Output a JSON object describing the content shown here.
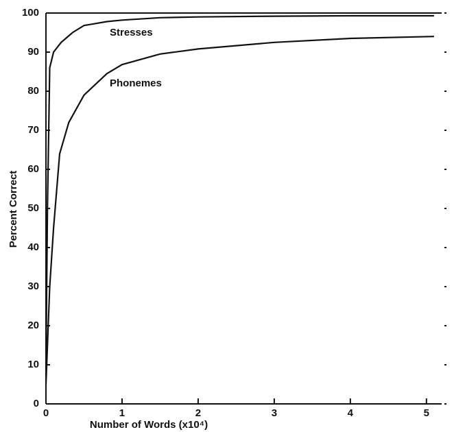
{
  "chart_data": {
    "type": "line",
    "x_label": "Number of Words (x10⁴)",
    "y_label": "Percent Correct",
    "xlim": [
      0,
      5.2
    ],
    "ylim": [
      0,
      100
    ],
    "xticks": [
      0,
      1,
      2,
      3,
      4,
      5
    ],
    "yticks": [
      0,
      10,
      20,
      30,
      40,
      50,
      60,
      70,
      80,
      90,
      100
    ],
    "series": [
      {
        "name": "Stresses",
        "color": "#111111",
        "x": [
          0,
          0.02,
          0.05,
          0.1,
          0.2,
          0.35,
          0.5,
          0.8,
          1,
          1.5,
          2,
          3,
          4,
          5.1
        ],
        "values": [
          10,
          50,
          86,
          90,
          92.5,
          95,
          96.8,
          97.8,
          98.2,
          98.8,
          99,
          99.2,
          99.3,
          99.3
        ]
      },
      {
        "name": "Phonemes",
        "color": "#111111",
        "x": [
          0,
          0.05,
          0.1,
          0.18,
          0.3,
          0.5,
          0.8,
          1,
          1.5,
          2,
          3,
          4,
          5.1
        ],
        "values": [
          5,
          30,
          45,
          64,
          72,
          79,
          84.5,
          86.8,
          89.5,
          90.8,
          92.5,
          93.5,
          94
        ]
      }
    ]
  }
}
